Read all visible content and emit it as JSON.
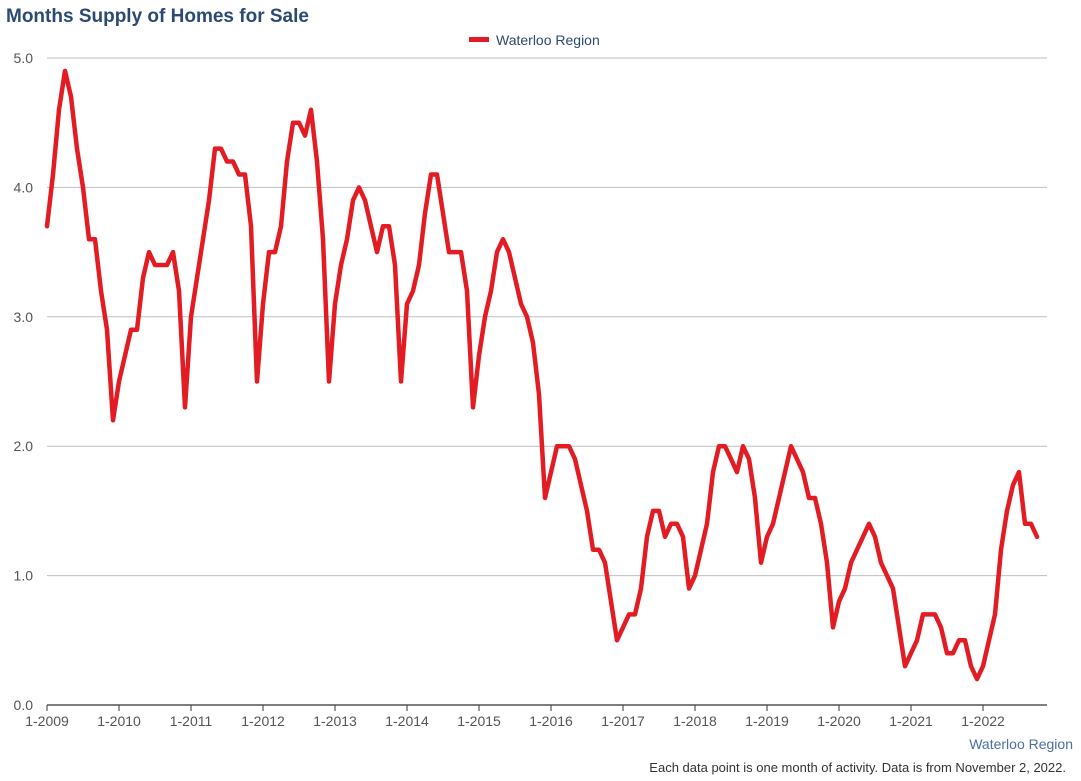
{
  "colors": {
    "title": "#2b4a73",
    "line": "#e31b23",
    "grid": "#bfbfbf",
    "axis": "#555555",
    "region": "#4a6fa5"
  },
  "chart_data": {
    "type": "line",
    "title": "Months Supply of Homes for Sale",
    "xlabel": "",
    "ylabel": "",
    "ylim": [
      0,
      5
    ],
    "yticks": [
      "0.0",
      "1.0",
      "2.0",
      "3.0",
      "4.0",
      "5.0"
    ],
    "xticks": [
      "1-2009",
      "1-2010",
      "1-2011",
      "1-2012",
      "1-2013",
      "1-2014",
      "1-2015",
      "1-2016",
      "1-2017",
      "1-2018",
      "1-2019",
      "1-2020",
      "1-2021",
      "1-2022"
    ],
    "grid": true,
    "legend_position": "top-center",
    "x_start": "2009-01",
    "x_end": "2022-10",
    "series": [
      {
        "name": "Waterloo Region",
        "values": [
          3.7,
          4.1,
          4.6,
          4.9,
          4.7,
          4.3,
          4.0,
          3.6,
          3.6,
          3.2,
          2.9,
          2.2,
          2.5,
          2.7,
          2.9,
          2.9,
          3.3,
          3.5,
          3.4,
          3.4,
          3.4,
          3.5,
          3.2,
          2.3,
          3.0,
          3.3,
          3.6,
          3.9,
          4.3,
          4.3,
          4.2,
          4.2,
          4.1,
          4.1,
          3.7,
          2.5,
          3.1,
          3.5,
          3.5,
          3.7,
          4.2,
          4.5,
          4.5,
          4.4,
          4.6,
          4.2,
          3.6,
          2.5,
          3.1,
          3.4,
          3.6,
          3.9,
          4.0,
          3.9,
          3.7,
          3.5,
          3.7,
          3.7,
          3.4,
          2.5,
          3.1,
          3.2,
          3.4,
          3.8,
          4.1,
          4.1,
          3.8,
          3.5,
          3.5,
          3.5,
          3.2,
          2.3,
          2.7,
          3.0,
          3.2,
          3.5,
          3.6,
          3.5,
          3.3,
          3.1,
          3.0,
          2.8,
          2.4,
          1.6,
          1.8,
          2.0,
          2.0,
          2.0,
          1.9,
          1.7,
          1.5,
          1.2,
          1.2,
          1.1,
          0.8,
          0.5,
          0.6,
          0.7,
          0.7,
          0.9,
          1.3,
          1.5,
          1.5,
          1.3,
          1.4,
          1.4,
          1.3,
          0.9,
          1.0,
          1.2,
          1.4,
          1.8,
          2.0,
          2.0,
          1.9,
          1.8,
          2.0,
          1.9,
          1.6,
          1.1,
          1.3,
          1.4,
          1.6,
          1.8,
          2.0,
          1.9,
          1.8,
          1.6,
          1.6,
          1.4,
          1.1,
          0.6,
          0.8,
          0.9,
          1.1,
          1.2,
          1.3,
          1.4,
          1.3,
          1.1,
          1.0,
          0.9,
          0.6,
          0.3,
          0.4,
          0.5,
          0.7,
          0.7,
          0.7,
          0.6,
          0.4,
          0.4,
          0.5,
          0.5,
          0.3,
          0.2,
          0.3,
          0.5,
          0.7,
          1.2,
          1.5,
          1.7,
          1.8,
          1.4,
          1.4,
          1.3
        ]
      }
    ],
    "region_label": "Waterloo Region",
    "footnote": "Each data point is one month of activity. Data is from November 2, 2022."
  }
}
